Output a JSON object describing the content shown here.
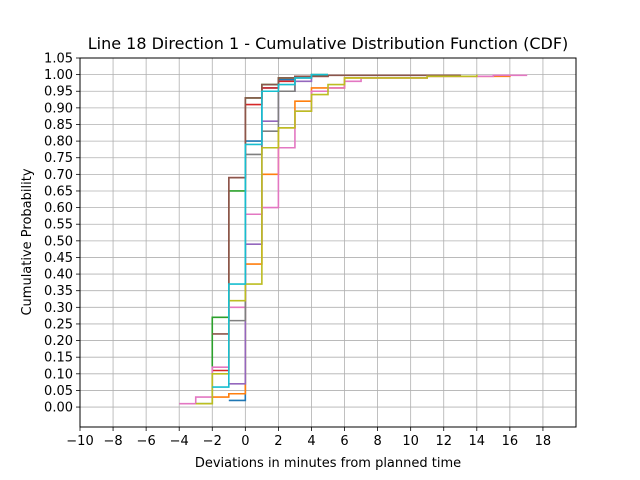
{
  "chart_data": {
    "type": "line",
    "step": "post",
    "title": "Line 18 Direction 1 - Cumulative Distribution Function (CDF)",
    "xlabel": "Deviations in minutes from planned time",
    "ylabel": "Cumulative Probability",
    "xlim": [
      -10,
      20
    ],
    "ylim": [
      -0.06,
      1.05
    ],
    "xticks": [
      -10,
      -8,
      -6,
      -4,
      -2,
      0,
      2,
      4,
      6,
      8,
      10,
      12,
      14,
      16,
      18
    ],
    "yticks": [
      "0.00",
      "0.05",
      "0.10",
      "0.15",
      "0.20",
      "0.25",
      "0.30",
      "0.35",
      "0.40",
      "0.45",
      "0.50",
      "0.55",
      "0.60",
      "0.65",
      "0.70",
      "0.75",
      "0.80",
      "0.85",
      "0.90",
      "0.95",
      "1.00",
      "1.05"
    ],
    "grid": true,
    "legend": "none",
    "series": [
      {
        "color": "#1f77b4",
        "x": [
          -1,
          0,
          1,
          2,
          3,
          4,
          5
        ],
        "y": [
          0.02,
          0.8,
          0.96,
          0.985,
          0.995,
          1.0,
          1.0
        ]
      },
      {
        "color": "#ff7f0e",
        "x": [
          -2,
          -1,
          0,
          1,
          2,
          3,
          4,
          6,
          11,
          16
        ],
        "y": [
          0.03,
          0.04,
          0.43,
          0.7,
          0.84,
          0.92,
          0.96,
          0.99,
          0.995,
          1.0
        ]
      },
      {
        "color": "#2ca02c",
        "x": [
          -3,
          -2,
          -1,
          0,
          1,
          2,
          3,
          4,
          5
        ],
        "y": [
          0.01,
          0.27,
          0.65,
          0.93,
          0.97,
          0.99,
          0.995,
          1.0,
          1.0
        ]
      },
      {
        "color": "#d62728",
        "x": [
          -2,
          -1,
          0,
          1,
          2,
          3,
          5
        ],
        "y": [
          0.11,
          0.69,
          0.91,
          0.96,
          0.98,
          0.995,
          1.0
        ]
      },
      {
        "color": "#9467bd",
        "x": [
          -1,
          0,
          1,
          2,
          3,
          4
        ],
        "y": [
          0.07,
          0.49,
          0.86,
          0.95,
          0.98,
          1.0
        ]
      },
      {
        "color": "#8c564b",
        "x": [
          -2,
          -1,
          0,
          1,
          2,
          3,
          5,
          13
        ],
        "y": [
          0.22,
          0.69,
          0.93,
          0.97,
          0.99,
          0.995,
          0.998,
          1.0
        ]
      },
      {
        "color": "#e377c2",
        "x": [
          -4,
          -3,
          -2,
          -1,
          0,
          1,
          2,
          3,
          4,
          5,
          6,
          7,
          11,
          15,
          17
        ],
        "y": [
          0.01,
          0.03,
          0.12,
          0.3,
          0.58,
          0.6,
          0.78,
          0.89,
          0.95,
          0.96,
          0.98,
          0.99,
          0.995,
          0.998,
          1.0
        ]
      },
      {
        "color": "#7f7f7f",
        "x": [
          -1,
          0,
          1,
          2,
          3,
          4
        ],
        "y": [
          0.26,
          0.76,
          0.83,
          0.95,
          0.99,
          1.0
        ]
      },
      {
        "color": "#bcbd22",
        "x": [
          -3,
          -2,
          -1,
          0,
          1,
          2,
          3,
          4,
          5,
          6,
          11,
          14
        ],
        "y": [
          0.01,
          0.1,
          0.32,
          0.37,
          0.78,
          0.84,
          0.89,
          0.94,
          0.97,
          0.99,
          0.995,
          1.0
        ]
      },
      {
        "color": "#17becf",
        "x": [
          -2,
          -1,
          0,
          1,
          2,
          3,
          4,
          5
        ],
        "y": [
          0.06,
          0.37,
          0.79,
          0.95,
          0.97,
          0.99,
          1.0,
          1.0
        ]
      }
    ]
  }
}
